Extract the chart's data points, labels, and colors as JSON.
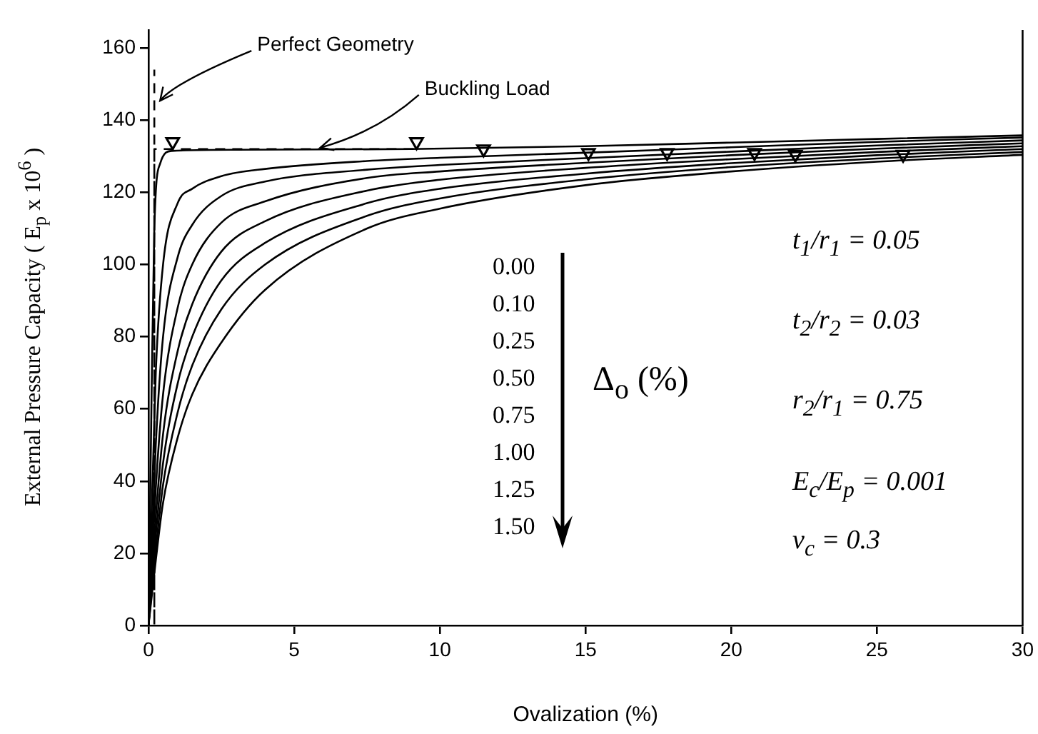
{
  "chart_data": {
    "type": "line",
    "xlabel": "Ovalization (%)",
    "ylabel": "External Pressure Capacity ( E$_{p}$ x 10$^{6}$ )",
    "xlim": [
      0,
      30
    ],
    "xticks": [
      0,
      5,
      10,
      15,
      20,
      25,
      30
    ],
    "ylim": [
      0,
      165
    ],
    "yticks": [
      0,
      20,
      40,
      60,
      80,
      100,
      120,
      140,
      160
    ],
    "grid": false,
    "legend": false,
    "marker": "none",
    "line_style": "solid",
    "series": [
      {
        "color": "#000000",
        "x": [
          0,
          0.1,
          0.2,
          0.4,
          0.8,
          3,
          9,
          15,
          20,
          25,
          30
        ],
        "values": [
          0,
          60,
          110,
          128,
          131.5,
          131.8,
          132,
          132.8,
          133.8,
          134.8,
          135.8
        ]
      },
      {
        "color": "#000000",
        "x": [
          0,
          0.25,
          0.5,
          1,
          1.5,
          2.5,
          4,
          7.5,
          10,
          15,
          20,
          25,
          30
        ],
        "values": [
          0,
          70,
          100,
          117,
          121,
          124.5,
          126.5,
          128.7,
          129.6,
          131,
          132.5,
          134,
          135.2
        ]
      },
      {
        "color": "#000000",
        "x": [
          0,
          0.25,
          0.5,
          1,
          1.5,
          2.5,
          4,
          7.5,
          10,
          15,
          20,
          25,
          30
        ],
        "values": [
          0,
          50,
          80,
          102,
          111,
          119,
          123,
          126.3,
          127.6,
          129.5,
          131.3,
          133,
          134.4
        ]
      },
      {
        "color": "#000000",
        "x": [
          0,
          0.25,
          0.5,
          1,
          1.5,
          2.5,
          4,
          7.5,
          10,
          15,
          20,
          25,
          30
        ],
        "values": [
          0,
          38,
          64,
          88,
          100,
          111.6,
          117.5,
          124,
          125.8,
          128.2,
          130.3,
          132.1,
          133.6
        ]
      },
      {
        "color": "#000000",
        "x": [
          0,
          0.25,
          0.5,
          1,
          1.5,
          2.5,
          4,
          7.5,
          10,
          15,
          20,
          25,
          30
        ],
        "values": [
          0,
          30,
          53,
          76,
          89,
          103.6,
          112,
          120.5,
          123.5,
          126.8,
          129.2,
          131.2,
          132.8
        ]
      },
      {
        "color": "#000000",
        "x": [
          0,
          0.25,
          0.5,
          1,
          1.5,
          2.5,
          4,
          7.5,
          10,
          15,
          20,
          25,
          30
        ],
        "values": [
          0,
          25,
          45,
          67,
          80,
          95.6,
          106,
          117,
          121,
          125.2,
          128.1,
          130.3,
          132
        ]
      },
      {
        "color": "#000000",
        "x": [
          0,
          0.25,
          0.5,
          1,
          1.5,
          2.5,
          4,
          7.5,
          10,
          15,
          20,
          25,
          30
        ],
        "values": [
          0,
          21,
          39,
          59,
          72,
          87.6,
          100,
          113.5,
          118.3,
          123.6,
          127,
          129.4,
          131.2
        ]
      },
      {
        "color": "#000000",
        "x": [
          0,
          0.25,
          0.5,
          1,
          1.5,
          2.5,
          4,
          7.5,
          10,
          15,
          20,
          25,
          30
        ],
        "values": [
          0,
          18,
          34,
          52,
          64,
          78.4,
          93,
          110,
          115.5,
          122,
          125.8,
          128.5,
          130.4
        ]
      },
      {
        "color": "#000000",
        "line_style": "dashed",
        "x": [
          9.1,
          0.2,
          0.2,
          0.2
        ],
        "values": [
          132,
          132,
          0,
          154
        ]
      },
      {
        "type": "scatter",
        "color": "#000000",
        "marker": "triangle",
        "x": [
          0.83,
          9.2,
          11.5,
          15.1,
          17.8,
          20.8,
          22.2,
          25.9
        ],
        "values": [
          134,
          134,
          132,
          131,
          131,
          131,
          130.5,
          130.5
        ]
      }
    ],
    "annotations": [
      {
        "text": "Perfect Geometry",
        "x": 0.3,
        "y": 145
      },
      {
        "text": "Buckling Load",
        "x": 5.8,
        "y": 132
      },
      "0.00",
      "0.10",
      "0.25",
      "0.50",
      "0.75",
      "1.00",
      "1.25",
      "1.50",
      "Δ$_{o}$ (%)",
      "t$_{1}$/r$_{1}$ = 0.05",
      "t$_{2}$/r$_{2}$ = 0.03",
      "r$_{2}$/r$_{1}$ = 0.75",
      "E$_{c}$/E$_{p}$ = 0.001",
      "ν$_{c}$ = 0.3"
    ]
  }
}
